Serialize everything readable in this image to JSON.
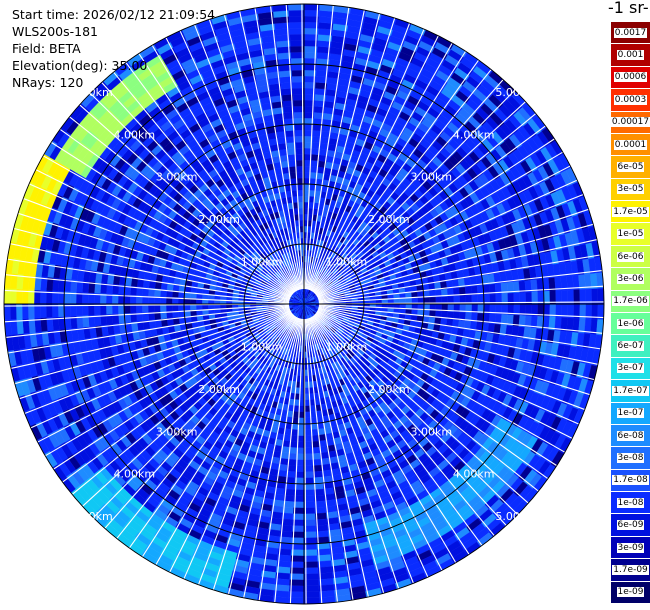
{
  "header": {
    "start_time": "Start time: 2026/02/12 21:09:54",
    "instrument": "WLS200s-181",
    "field": "Field: BETA",
    "elevation": "Elevation(deg): 35.00",
    "nrays": "NRays: 120"
  },
  "colorbar": {
    "title_visible": "-1 sr-",
    "labels": [
      "0.0017",
      "0.001",
      "0.0006",
      "0.0003",
      "0.00017",
      "0.0001",
      "6e-05",
      "3e-05",
      "1.7e-05",
      "1e-05",
      "6e-06",
      "3e-06",
      "1.7e-06",
      "1e-06",
      "6e-07",
      "3e-07",
      "1.7e-07",
      "1e-07",
      "6e-08",
      "3e-08",
      "1.7e-08",
      "1e-08",
      "6e-09",
      "3e-09",
      "1.7e-09",
      "1e-09"
    ],
    "colors": [
      "#8b0000",
      "#b00000",
      "#e00000",
      "#ff3000",
      "#ff6a00",
      "#ff9000",
      "#ffb000",
      "#ffd000",
      "#fff200",
      "#e8ff2a",
      "#ccff44",
      "#b0ff60",
      "#8cff80",
      "#66ff9a",
      "#3ff0c0",
      "#1fe0e8",
      "#10c8f4",
      "#14a8ff",
      "#1e8cff",
      "#2070ff",
      "#1a52ff",
      "#0a2cff",
      "#0010e0",
      "#0000b8",
      "#000090",
      "#000068"
    ]
  },
  "chart_data": {
    "type": "heatmap",
    "subtype": "polar-ppi",
    "field": "BETA",
    "elevation_deg": 35.0,
    "n_rays": 120,
    "azimuth_step_deg": 3,
    "max_range_km": 5.0,
    "range_rings_km": [
      1.0,
      2.0,
      3.0,
      4.0,
      5.0
    ],
    "ring_labels": [
      "1.00km",
      "2.00km",
      "3.00km",
      "4.00km",
      "5.00km"
    ],
    "color_scale": "log",
    "value_range": [
      1e-09,
      0.0017
    ],
    "typical_value": 1e-08,
    "features": [
      {
        "sector_deg": [
          270,
          300
        ],
        "range_km": [
          4.5,
          5.0
        ],
        "value_approx": 1.7e-05
      },
      {
        "sector_deg": [
          300,
          330
        ],
        "range_km": [
          4.2,
          4.8
        ],
        "value_approx": 3e-06
      },
      {
        "sector_deg": [
          120,
          165
        ],
        "range_km": [
          3.8,
          4.5
        ],
        "value_approx": 1e-07
      },
      {
        "sector_deg": [
          195,
          230
        ],
        "range_km": [
          4.3,
          5.0
        ],
        "value_approx": 1.7e-07
      }
    ]
  }
}
